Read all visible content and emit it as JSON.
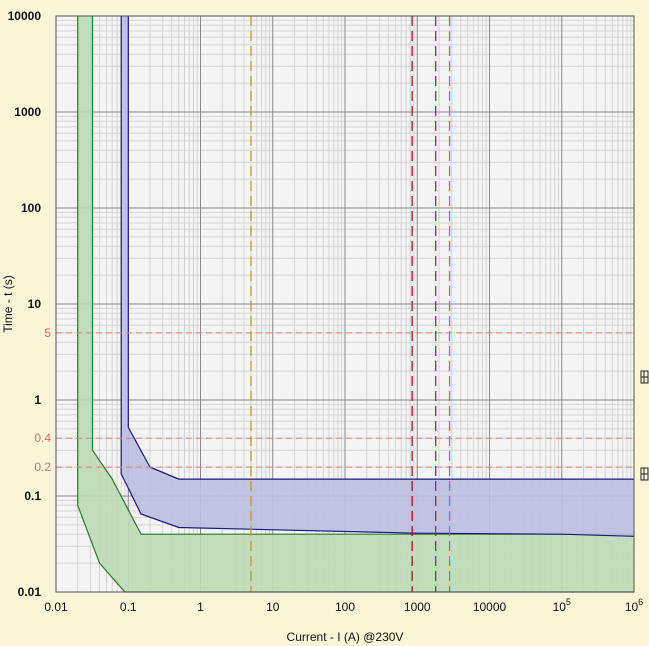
{
  "chart_data": {
    "type": "area",
    "scale": {
      "x": "log",
      "y": "log"
    },
    "xlim": [
      0.01,
      1000000
    ],
    "ylim": [
      0.01,
      10000
    ],
    "xlabel": "Current - I (A) @230V",
    "ylabel": "Time - t (s)",
    "x_ticks": [
      {
        "value": 0.01,
        "label": "0.01"
      },
      {
        "value": 0.1,
        "label": "0.1"
      },
      {
        "value": 1,
        "label": "1"
      },
      {
        "value": 10,
        "label": "10"
      },
      {
        "value": 100,
        "label": "100"
      },
      {
        "value": 1000,
        "label": "1000"
      },
      {
        "value": 10000,
        "label": "10000"
      },
      {
        "value": 100000,
        "label": "10",
        "sup": "5"
      },
      {
        "value": 1000000,
        "label": "10",
        "sup": "6"
      }
    ],
    "y_ticks": [
      {
        "value": 10000,
        "label": "10000",
        "bold": true
      },
      {
        "value": 1000,
        "label": "1000",
        "bold": true
      },
      {
        "value": 100,
        "label": "100",
        "bold": true
      },
      {
        "value": 10,
        "label": "10",
        "bold": true
      },
      {
        "value": 1,
        "label": "1",
        "bold": true
      },
      {
        "value": 0.1,
        "label": "0.1",
        "bold": true
      },
      {
        "value": 0.01,
        "label": "0.01",
        "bold": true
      }
    ],
    "reference_times": [
      {
        "value": 5,
        "label": "5"
      },
      {
        "value": 0.4,
        "label": "0.4"
      },
      {
        "value": 0.2,
        "label": "0.2"
      }
    ],
    "reference_currents": [
      {
        "value": 5,
        "color": "#c8962e"
      },
      {
        "value": 850,
        "color": "#a01818"
      },
      {
        "value": 1800,
        "color": "#9a1aa8"
      },
      {
        "value": 2800,
        "color": "#18a8b8"
      }
    ],
    "series": [
      {
        "band": "green",
        "fill": "#bcd9b6",
        "stroke": "#2a7a2a",
        "upper": [
          [
            0.032,
            10000
          ],
          [
            0.032,
            0.3
          ],
          [
            0.06,
            0.15
          ],
          [
            0.15,
            0.04
          ],
          [
            1000000,
            0.04
          ]
        ],
        "lower": [
          [
            0.02,
            10000
          ],
          [
            0.02,
            0.08
          ],
          [
            0.04,
            0.02
          ],
          [
            0.09,
            0.01
          ],
          [
            1000000,
            0.01
          ]
        ]
      },
      {
        "band": "blue",
        "fill": "#bcbde0",
        "stroke": "#1a1a80",
        "upper": [
          [
            0.1,
            10000
          ],
          [
            0.1,
            0.52
          ],
          [
            0.2,
            0.2
          ],
          [
            0.5,
            0.15
          ],
          [
            1000000,
            0.15
          ]
        ],
        "lower": [
          [
            0.08,
            10000
          ],
          [
            0.08,
            0.17
          ],
          [
            0.15,
            0.065
          ],
          [
            0.5,
            0.047
          ],
          [
            1000,
            0.041
          ],
          [
            100000,
            0.04
          ],
          [
            1000000,
            0.038
          ]
        ]
      }
    ]
  },
  "colors": {
    "background": "#fdf5d8",
    "plot_area": "#f4f4f4",
    "grid_major": "#8a8a8a",
    "grid_minor": "#d4d4d4",
    "reference_line": "#e08080"
  }
}
